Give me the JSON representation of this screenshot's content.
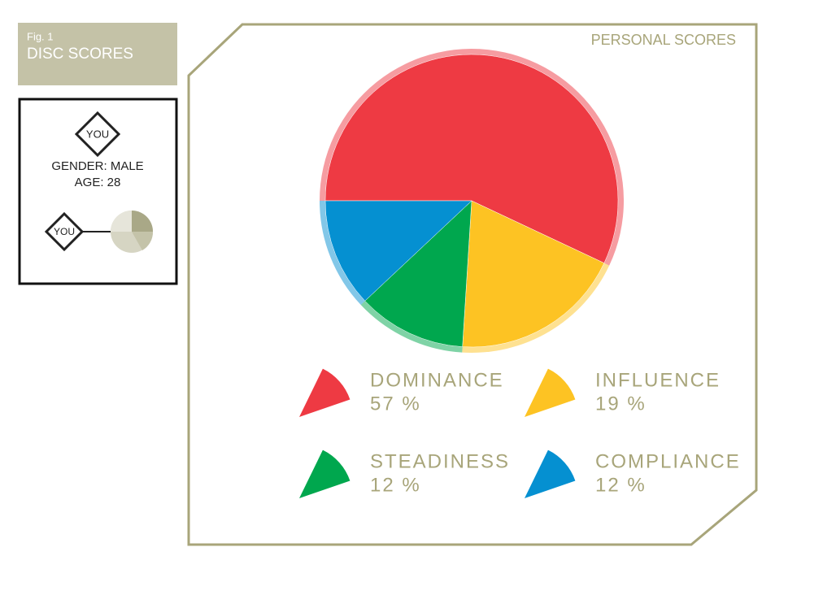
{
  "figure": {
    "label": "Fig. 1",
    "title": "DISC SCORES"
  },
  "profile": {
    "badge": "YOU",
    "gender": "GENDER: MALE",
    "age": "AGE: 28",
    "mini_badge": "YOU"
  },
  "chart_data": {
    "type": "pie",
    "title": "PERSONAL SCORES",
    "categories": [
      "DOMINANCE",
      "INFLUENCE",
      "STEADINESS",
      "COMPLIANCE"
    ],
    "values": [
      57,
      19,
      12,
      12
    ],
    "value_labels": [
      "57 %",
      "19 %",
      "12 %",
      "12 %"
    ],
    "colors": [
      "#ee3a43",
      "#fdc323",
      "#00a74e",
      "#0590d1"
    ]
  }
}
